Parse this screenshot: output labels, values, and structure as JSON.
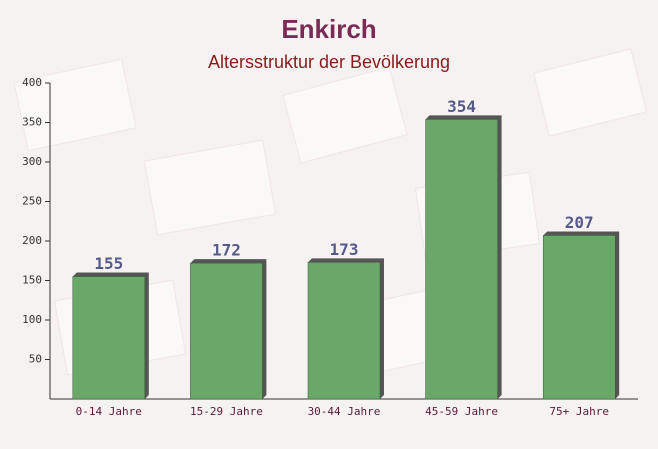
{
  "chart_data": {
    "type": "bar",
    "title": "Enkirch",
    "subtitle": "Altersstruktur der Bevölkerung",
    "categories": [
      "0-14 Jahre",
      "15-29 Jahre",
      "30-44 Jahre",
      "45-59 Jahre",
      "75+ Jahre"
    ],
    "values": [
      155,
      172,
      173,
      354,
      207
    ],
    "color": "#6aa86a",
    "ylim": [
      0,
      400
    ],
    "yticks": [
      50,
      100,
      150,
      200,
      250,
      300,
      350,
      400
    ],
    "grid": false
  }
}
